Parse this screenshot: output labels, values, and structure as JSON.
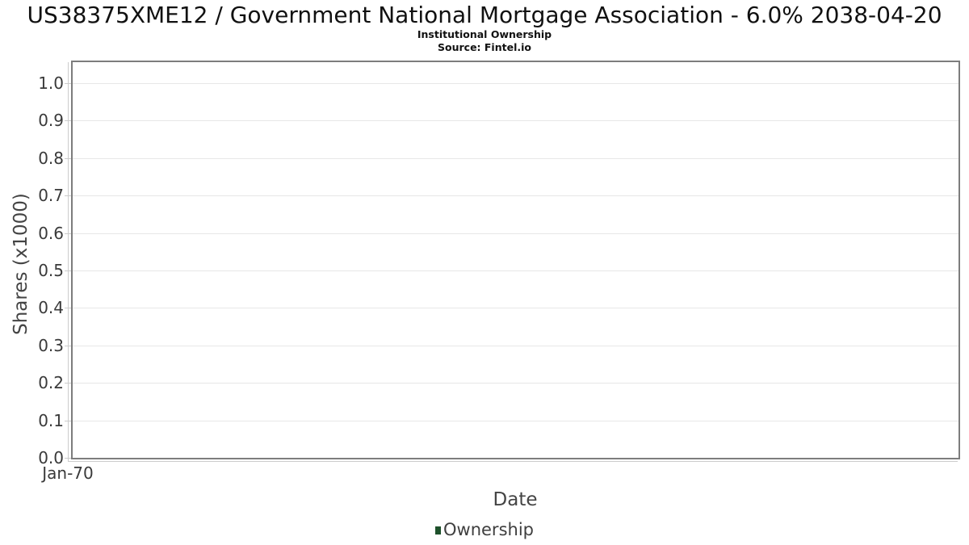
{
  "header": {
    "title": "US38375XME12 / Government National Mortgage Association - 6.0% 2038-04-20",
    "subtitle": "Institutional Ownership",
    "source": "Source: Fintel.io"
  },
  "chart_data": {
    "type": "line",
    "title": "US38375XME12 / Government National Mortgage Association - 6.0% 2038-04-20",
    "subtitle": "Institutional Ownership",
    "source": "Source: Fintel.io",
    "xlabel": "Date",
    "ylabel": "Shares (x1000)",
    "ylim": [
      0,
      1.056
    ],
    "grid": true,
    "y_ticks": [
      {
        "label": "1.0",
        "value": 1.0
      },
      {
        "label": "0.9",
        "value": 0.9
      },
      {
        "label": "0.8",
        "value": 0.8
      },
      {
        "label": "0.7",
        "value": 0.7
      },
      {
        "label": "0.6",
        "value": 0.6
      },
      {
        "label": "0.5",
        "value": 0.5
      },
      {
        "label": "0.4",
        "value": 0.4
      },
      {
        "label": "0.3",
        "value": 0.3
      },
      {
        "label": "0.2",
        "value": 0.2
      },
      {
        "label": "0.1",
        "value": 0.1
      },
      {
        "label": "0.0",
        "value": 0.0
      }
    ],
    "x_ticks": [
      {
        "label": "Jan-70"
      }
    ],
    "legend": {
      "position": "bottom",
      "entries": [
        {
          "label": "Ownership",
          "marker": "square",
          "color": "#1e512b"
        }
      ]
    },
    "series": [
      {
        "name": "Ownership",
        "x": [],
        "values": []
      }
    ]
  },
  "colors": {
    "plot_border": "#7d7d7d",
    "gridline": "#e7e7e7",
    "axis_line": "#cccccc",
    "tick_label": "#3a3a3a",
    "axis_title": "#444444",
    "legend_text": "#3f3f3f",
    "series_ownership": "#1e512b",
    "background": "#ffffff"
  }
}
